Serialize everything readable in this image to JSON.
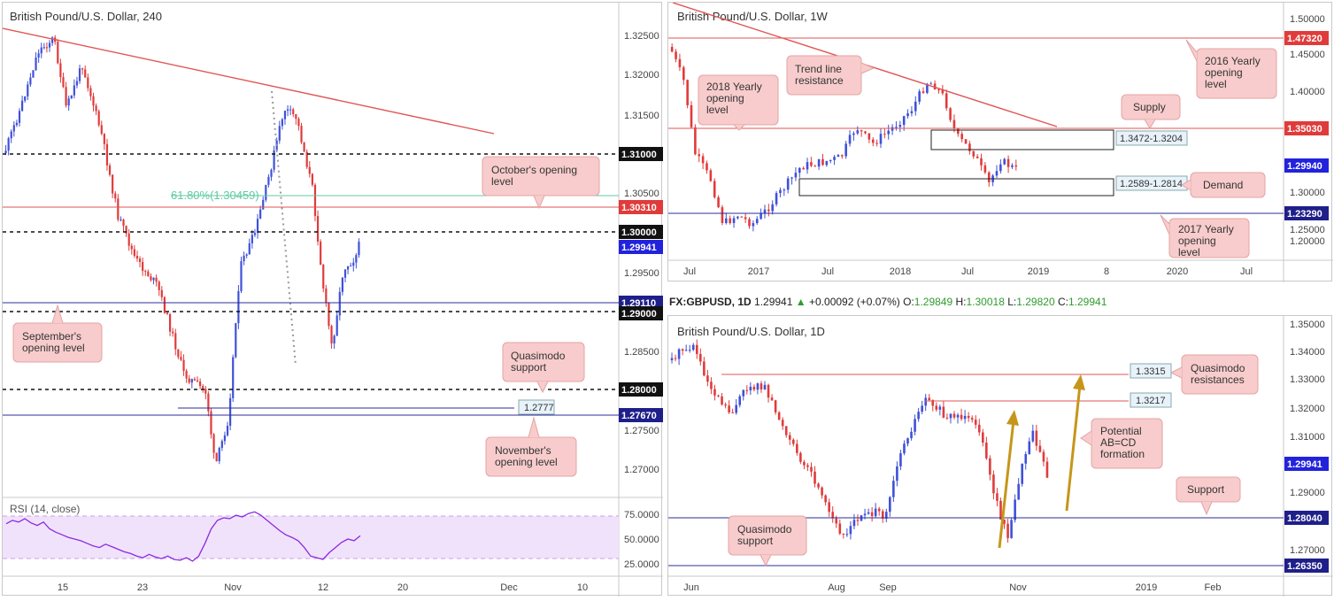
{
  "colors": {
    "bull": "#3f51d8",
    "bear": "#e03b3b",
    "resistance_red": "#e05454",
    "support_blue": "#2c2c99",
    "fib": "#5fc9a6",
    "callout_fill": "#f8cccc",
    "callout_stroke": "#e4a3a3",
    "gold": "#c6961a",
    "rsi_line": "#8a2be2",
    "rsi_band": "#f1e2fb"
  },
  "panel_h4": {
    "title": "British Pound/U.S. Dollar, 240",
    "x_ticks": [
      "15",
      "23",
      "Nov",
      "12",
      "20",
      "Dec",
      "10"
    ],
    "y_ticks": [
      "1.32500",
      "1.32000",
      "1.31500",
      "1.30500",
      "1.29500",
      "1.28500",
      "1.27500",
      "1.27000"
    ],
    "tags": [
      {
        "id": "h4-tag-13100",
        "text": "1.31000",
        "price": 1.31,
        "style": "black"
      },
      {
        "id": "h4-tag-13031",
        "text": "1.30310",
        "price": 1.3031,
        "style": "red"
      },
      {
        "id": "h4-tag-13000",
        "text": "1.30000",
        "price": 1.3,
        "style": "black"
      },
      {
        "id": "h4-tag-12994",
        "text": "1.29941",
        "price": 1.29941,
        "style": "blue"
      },
      {
        "id": "h4-tag-12911",
        "text": "1.29110",
        "price": 1.2911,
        "style": "navy"
      },
      {
        "id": "h4-tag-12900",
        "text": "1.29000",
        "price": 1.29,
        "style": "black"
      },
      {
        "id": "h4-tag-12800",
        "text": "1.28000",
        "price": 1.28,
        "style": "black"
      },
      {
        "id": "h4-tag-12767",
        "text": "1.27670",
        "price": 1.2767,
        "style": "navy"
      }
    ],
    "fib_label": "61.80%(1.30459)",
    "box_label_12777": "1.2777",
    "callouts": {
      "october": "October's opening level",
      "september": "September's opening level",
      "quasimodo": "Quasimodo support",
      "november": "November's opening level"
    },
    "rsi_title": "RSI (14, close)",
    "rsi_ticks": [
      "75.0000",
      "50.0000",
      "25.0000"
    ]
  },
  "panel_weekly": {
    "title": "British Pound/U.S. Dollar, 1W",
    "x_ticks": [
      "Jul",
      "2017",
      "Jul",
      "2018",
      "Jul",
      "2019",
      "8",
      "2020",
      "Jul"
    ],
    "y_ticks": [
      "1.50000",
      "1.45000",
      "1.40000",
      "1.30000",
      "1.25000",
      "1.20000"
    ],
    "tags": [
      {
        "id": "w-tag-14732",
        "text": "1.47320",
        "price": 1.4732,
        "style": "red"
      },
      {
        "id": "w-tag-13503",
        "text": "1.35030",
        "price": 1.3503,
        "style": "red"
      },
      {
        "id": "w-tag-12994",
        "text": "1.29940",
        "price": 1.2994,
        "style": "blue"
      },
      {
        "id": "w-tag-12329",
        "text": "1.23290",
        "price": 1.2329,
        "style": "navy"
      }
    ],
    "box_labels": {
      "supply": "1.3472-1.3204",
      "demand": "1.2589-1.2814"
    },
    "callouts": {
      "trend": "Trend line resistance",
      "y2018": "2018 Yearly opening level",
      "y2016": "2016 Yearly opening level",
      "supply": "Supply",
      "demand": "Demand",
      "y2017": "2017 Yearly opening level"
    }
  },
  "header_daily": {
    "symbol": "FX:GBPUSD, 1D",
    "last": "1.29941",
    "change": "+0.00092 (+0.07%)",
    "o_label": "O:",
    "o": "1.29849",
    "h_label": "H:",
    "h": "1.30018",
    "l_label": "L:",
    "l": "1.29820",
    "c_label": "C:",
    "c": "1.29941"
  },
  "panel_daily": {
    "title": "British Pound/U.S. Dollar, 1D",
    "x_ticks": [
      "Jun",
      "Aug",
      "Sep",
      "Nov",
      "2019",
      "Feb"
    ],
    "y_ticks": [
      "1.35000",
      "1.34000",
      "1.33000",
      "1.32000",
      "1.31000",
      "1.29000",
      "1.27000"
    ],
    "tags": [
      {
        "id": "d-tag-12994",
        "text": "1.29941",
        "price": 1.29941,
        "style": "blue"
      },
      {
        "id": "d-tag-12804",
        "text": "1.28040",
        "price": 1.2804,
        "style": "navy"
      },
      {
        "id": "d-tag-12635",
        "text": "1.26350",
        "price": 1.2635,
        "style": "navy"
      }
    ],
    "box_labels": {
      "q3315": "1.3315",
      "q3217": "1.3217"
    },
    "callouts": {
      "qm_res": "Quasimodo resistances",
      "abcd": "Potential AB=CD formation",
      "support": "Support",
      "qm_sup": "Quasimodo support"
    }
  }
}
